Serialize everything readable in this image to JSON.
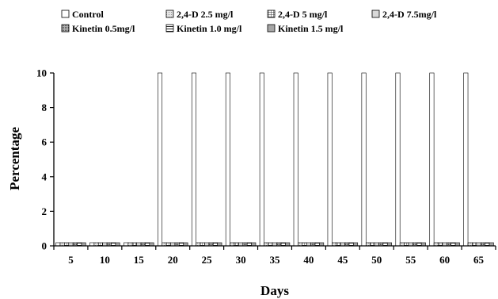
{
  "chart_data": {
    "type": "bar",
    "title": "",
    "xlabel": "Days",
    "ylabel": "Percentage",
    "ylim": [
      0,
      10
    ],
    "yticks": [
      0,
      2,
      4,
      6,
      8,
      10
    ],
    "grid": false,
    "legend_position": "top",
    "categories": [
      "5",
      "10",
      "15",
      "20",
      "25",
      "30",
      "35",
      "40",
      "45",
      "50",
      "55",
      "60",
      "65"
    ],
    "series": [
      {
        "name": "Control",
        "pattern": "white",
        "values": [
          0,
          0,
          0,
          10,
          10,
          10,
          10,
          10,
          10,
          10,
          10,
          10,
          10
        ]
      },
      {
        "name": "2,4-D 2.5 mg/l",
        "pattern": "light-dots",
        "values": [
          0,
          0,
          0,
          0,
          0,
          0,
          0,
          0,
          0,
          0,
          0,
          0,
          0
        ]
      },
      {
        "name": "2,4-D 5 mg/l",
        "pattern": "grid",
        "values": [
          0,
          0,
          0,
          0,
          0,
          0,
          0,
          0,
          0,
          0,
          0,
          0,
          0
        ]
      },
      {
        "name": "2,4-D 7.5mg/l",
        "pattern": "light-gray",
        "values": [
          0,
          0,
          0,
          0,
          0,
          0,
          0,
          0,
          0,
          0,
          0,
          0,
          0
        ]
      },
      {
        "name": "Kinetin 0.5mg/l",
        "pattern": "dark-dots",
        "values": [
          0,
          0,
          0,
          0,
          0,
          0,
          0,
          0,
          0,
          0,
          0,
          0,
          0
        ]
      },
      {
        "name": "Kinetin 1.0 mg/l",
        "pattern": "horizontal-lines",
        "values": [
          0,
          0,
          0,
          0,
          0,
          0,
          0,
          0,
          0,
          0,
          0,
          0,
          0
        ]
      },
      {
        "name": "Kinetin 1.5 mg/l",
        "pattern": "mid-gray",
        "values": [
          0,
          0,
          0,
          0,
          0,
          0,
          0,
          0,
          0,
          0,
          0,
          0,
          0
        ]
      }
    ]
  }
}
